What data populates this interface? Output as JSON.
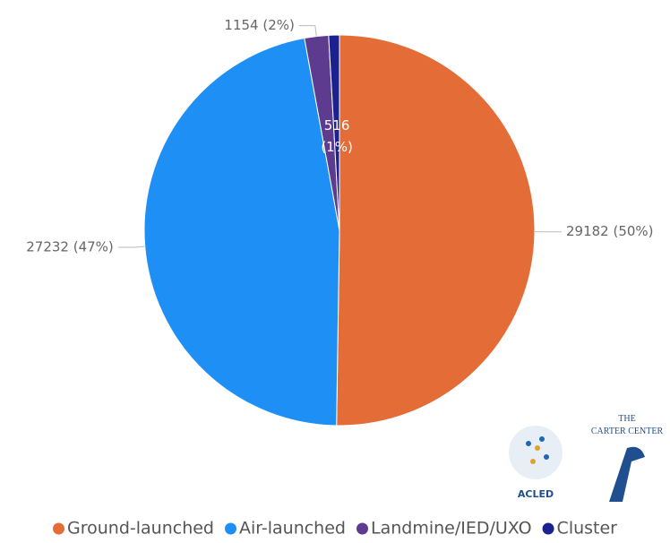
{
  "chart_data": {
    "type": "pie",
    "categories": [
      "Ground-launched",
      "Air-launched",
      "Landmine/IED/UXO",
      "Cluster"
    ],
    "values": [
      29182,
      27232,
      1154,
      516
    ],
    "value_labels": [
      "29182 (50%)",
      "27232 (47%)",
      "1154 (2%)",
      "516 (1%)"
    ],
    "colors": [
      "#e46c37",
      "#1e8ff5",
      "#5d3b8e",
      "#1b228f"
    ],
    "legend": "bottom",
    "annotations": [
      "ACLED",
      "THE",
      "CARTER CENTER"
    ]
  }
}
